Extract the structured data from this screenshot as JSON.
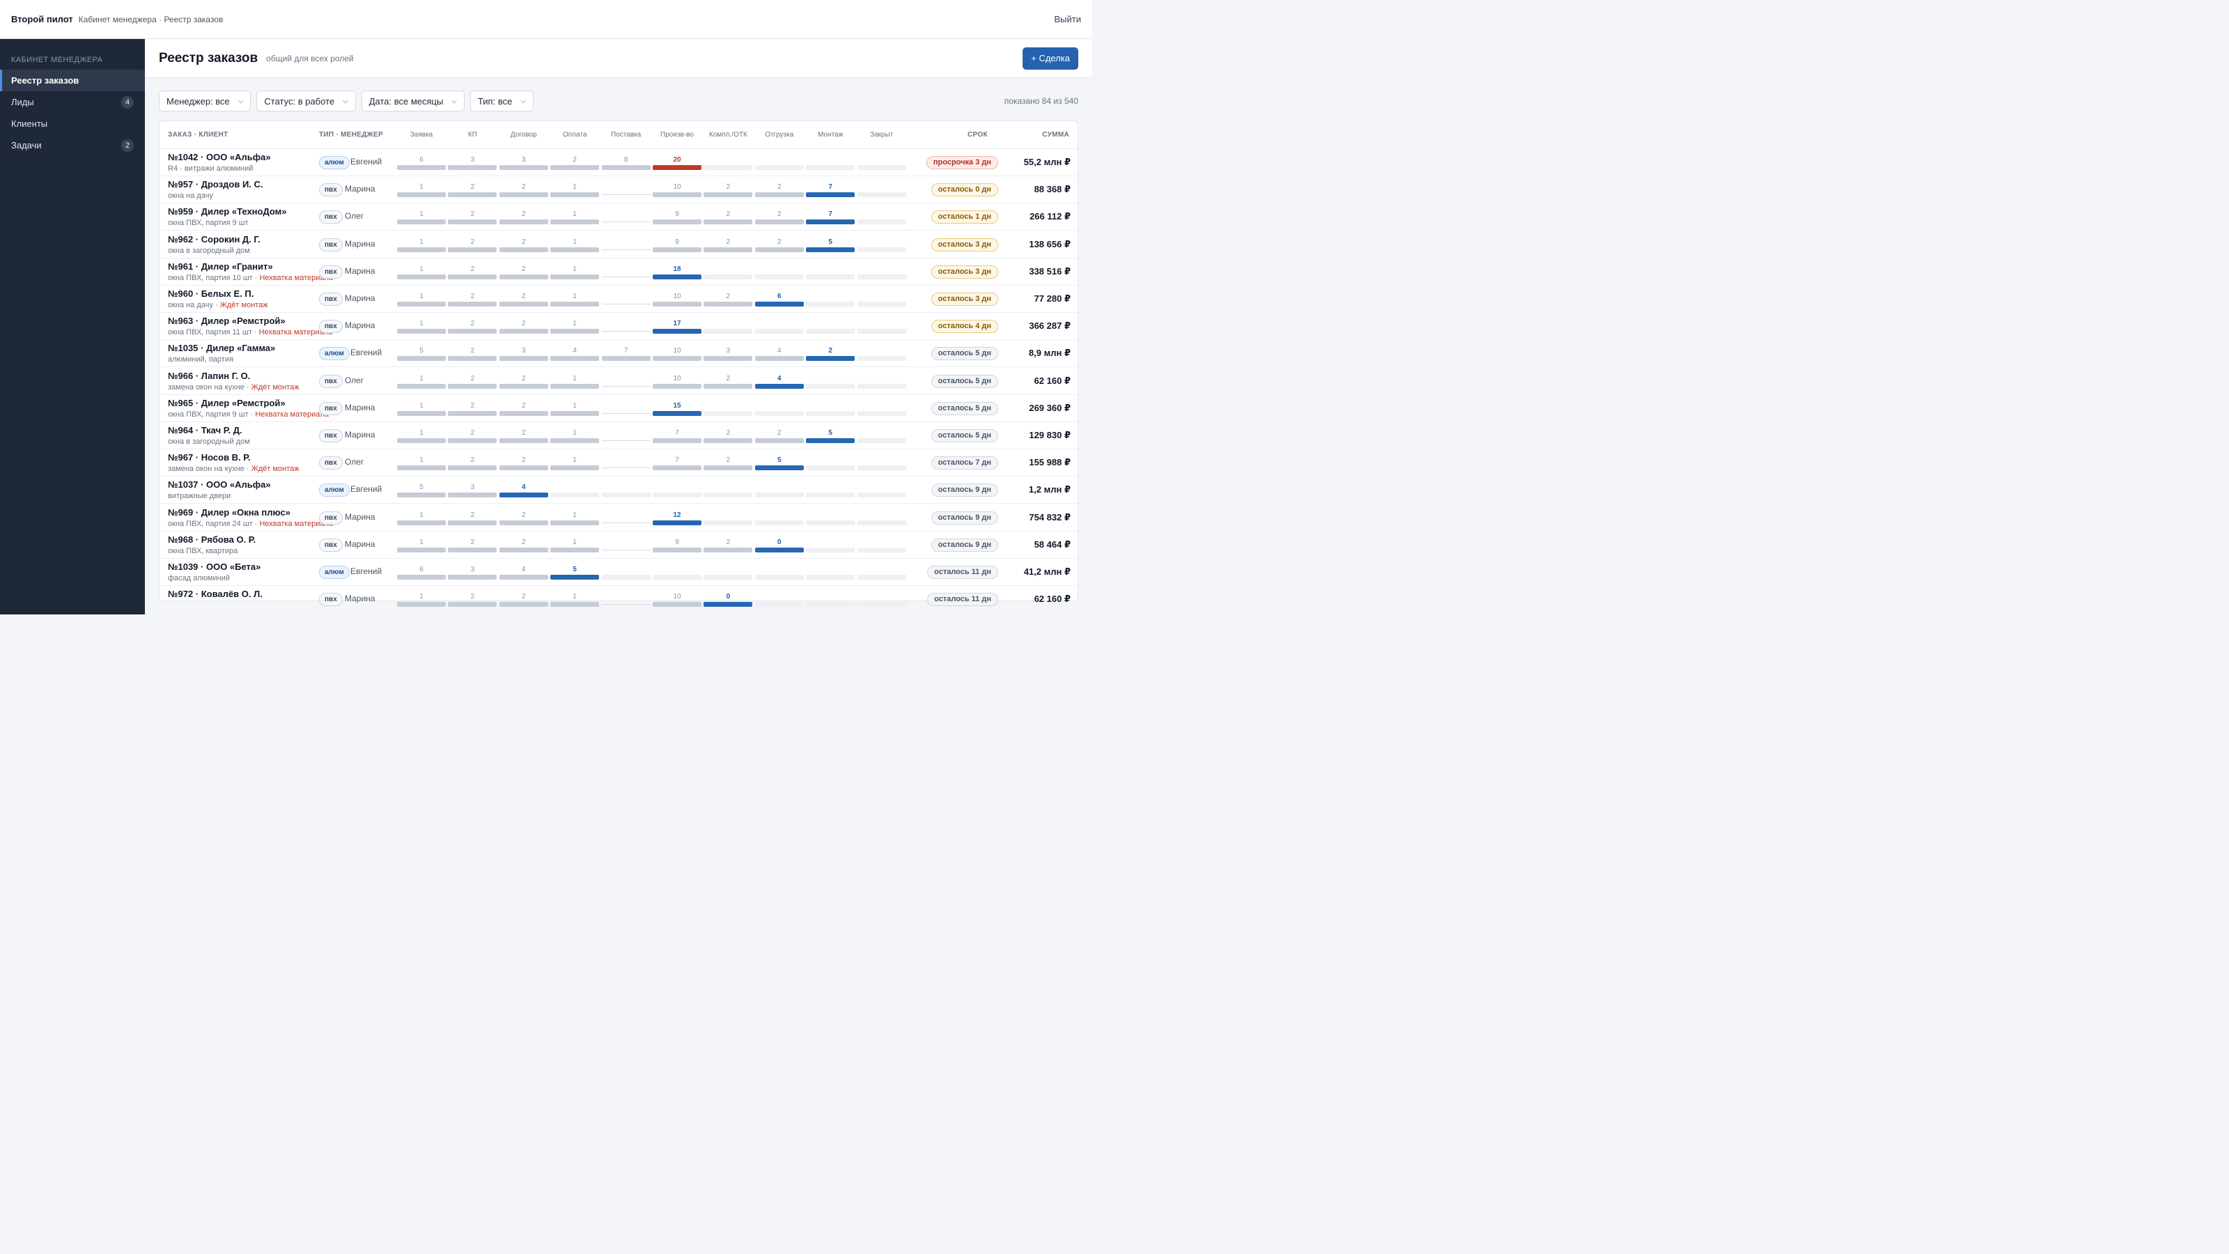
{
  "topbar": {
    "brand": "Второй пилот",
    "breadcrumb": "Кабинет менеджера · Реестр заказов",
    "logout": "Выйти"
  },
  "sidebar": {
    "section": "КАБИНЕТ МЕНЕДЖЕРА",
    "items": [
      {
        "label": "Реестр заказов",
        "badge": "",
        "active": true
      },
      {
        "label": "Лиды",
        "badge": "4",
        "active": false
      },
      {
        "label": "Клиенты",
        "badge": "",
        "active": false
      },
      {
        "label": "Задачи",
        "badge": "2",
        "active": false
      }
    ]
  },
  "header": {
    "title": "Реестр заказов",
    "subtitle": "общий для всех ролей",
    "new_deal": "+ Сделка"
  },
  "filters": [
    {
      "label": "Менеджер: все"
    },
    {
      "label": "Статус: в работе"
    },
    {
      "label": "Дата: все месяцы"
    },
    {
      "label": "Тип: все"
    }
  ],
  "shown_count": "показано 84 из 540",
  "columns": {
    "order": "ЗАКАЗ · КЛИЕНТ",
    "type": "ТИП · МЕНЕДЖЕР",
    "stages": [
      "Заявка",
      "КП",
      "Договор",
      "Оплата",
      "Поставка",
      "Произв-во",
      "Компл./ОТК",
      "Отгрузка",
      "Монтаж",
      "Закрыт"
    ],
    "deadline": "СРОК",
    "sum": "СУММА"
  },
  "rows": [
    {
      "title": "№1042 · ООО «Альфа»",
      "sub": "R4 · витражи алюминий",
      "warn": "",
      "type": "алюм",
      "manager": "Евгений",
      "stages": [
        "6",
        "3",
        "3",
        "2",
        "8",
        "20",
        "",
        "",
        "",
        ""
      ],
      "current": 5,
      "over": true,
      "deadline": "просрочка 3 дн",
      "dl": "over",
      "sum": "55,2 млн ₽"
    },
    {
      "title": "№957 · Дроздов И. С.",
      "sub": "окна на дачу",
      "warn": "",
      "type": "пвх",
      "manager": "Марина",
      "stages": [
        "1",
        "2",
        "2",
        "1",
        "",
        "10",
        "2",
        "2",
        "7",
        ""
      ],
      "current": 8,
      "over": false,
      "deadline": "осталось 0 дн",
      "dl": "warn",
      "sum": "88 368 ₽"
    },
    {
      "title": "№959 · Дилер «ТехноДом»",
      "sub": "окна ПВХ, партия 9 шт",
      "warn": "",
      "type": "пвх",
      "manager": "Олег",
      "stages": [
        "1",
        "2",
        "2",
        "1",
        "",
        "9",
        "2",
        "2",
        "7",
        ""
      ],
      "current": 8,
      "over": false,
      "deadline": "осталось 1 дн",
      "dl": "warn",
      "sum": "266 112 ₽"
    },
    {
      "title": "№962 · Сорокин Д. Г.",
      "sub": "окна в загородный дом",
      "warn": "",
      "type": "пвх",
      "manager": "Марина",
      "stages": [
        "1",
        "2",
        "2",
        "1",
        "",
        "9",
        "2",
        "2",
        "5",
        ""
      ],
      "current": 8,
      "over": false,
      "deadline": "осталось 3 дн",
      "dl": "warn",
      "sum": "138 656 ₽"
    },
    {
      "title": "№961 · Дилер «Гранит»",
      "sub": "окна ПВХ, партия 10 шт",
      "warn": "Нехватка материала",
      "type": "пвх",
      "manager": "Марина",
      "stages": [
        "1",
        "2",
        "2",
        "1",
        "",
        "18",
        "",
        "",
        "",
        ""
      ],
      "current": 5,
      "over": false,
      "deadline": "осталось 3 дн",
      "dl": "warn",
      "sum": "338 516 ₽"
    },
    {
      "title": "№960 · Белых Е. П.",
      "sub": "окна на дачу",
      "warn": "Ждёт монтаж",
      "type": "пвх",
      "manager": "Марина",
      "stages": [
        "1",
        "2",
        "2",
        "1",
        "",
        "10",
        "2",
        "6",
        "",
        ""
      ],
      "current": 7,
      "over": false,
      "deadline": "осталось 3 дн",
      "dl": "warn",
      "sum": "77 280 ₽"
    },
    {
      "title": "№963 · Дилер «Ремстрой»",
      "sub": "окна ПВХ, партия 11 шт",
      "warn": "Нехватка материала",
      "type": "пвх",
      "manager": "Марина",
      "stages": [
        "1",
        "2",
        "2",
        "1",
        "",
        "17",
        "",
        "",
        "",
        ""
      ],
      "current": 5,
      "over": false,
      "deadline": "осталось 4 дн",
      "dl": "warn",
      "sum": "366 287 ₽"
    },
    {
      "title": "№1035 · Дилер «Гамма»",
      "sub": "алюминий, партия",
      "warn": "",
      "type": "алюм",
      "manager": "Евгений",
      "stages": [
        "5",
        "2",
        "3",
        "4",
        "7",
        "10",
        "3",
        "4",
        "2",
        ""
      ],
      "current": 8,
      "over": false,
      "deadline": "осталось 5 дн",
      "dl": "ok",
      "sum": "8,9 млн ₽"
    },
    {
      "title": "№966 · Лапин Г. О.",
      "sub": "замена окон на кухне",
      "warn": "Ждёт монтаж",
      "type": "пвх",
      "manager": "Олег",
      "stages": [
        "1",
        "2",
        "2",
        "1",
        "",
        "10",
        "2",
        "4",
        "",
        ""
      ],
      "current": 7,
      "over": false,
      "deadline": "осталось 5 дн",
      "dl": "ok",
      "sum": "62 160 ₽"
    },
    {
      "title": "№965 · Дилер «Ремстрой»",
      "sub": "окна ПВХ, партия 9 шт",
      "warn": "Нехватка материала",
      "type": "пвх",
      "manager": "Марина",
      "stages": [
        "1",
        "2",
        "2",
        "1",
        "",
        "15",
        "",
        "",
        "",
        ""
      ],
      "current": 5,
      "over": false,
      "deadline": "осталось 5 дн",
      "dl": "ok",
      "sum": "269 360 ₽"
    },
    {
      "title": "№964 · Ткач Р. Д.",
      "sub": "окна в загородный дом",
      "warn": "",
      "type": "пвх",
      "manager": "Марина",
      "stages": [
        "1",
        "2",
        "2",
        "1",
        "",
        "7",
        "2",
        "2",
        "5",
        ""
      ],
      "current": 8,
      "over": false,
      "deadline": "осталось 5 дн",
      "dl": "ok",
      "sum": "129 830 ₽"
    },
    {
      "title": "№967 · Носов В. Р.",
      "sub": "замена окон на кухне",
      "warn": "Ждёт монтаж",
      "type": "пвх",
      "manager": "Олег",
      "stages": [
        "1",
        "2",
        "2",
        "1",
        "",
        "7",
        "2",
        "5",
        "",
        ""
      ],
      "current": 7,
      "over": false,
      "deadline": "осталось 7 дн",
      "dl": "ok",
      "sum": "155 988 ₽"
    },
    {
      "title": "№1037 · ООО «Альфа»",
      "sub": "витражные двери",
      "warn": "",
      "type": "алюм",
      "manager": "Евгений",
      "stages": [
        "5",
        "3",
        "4",
        "",
        "",
        "",
        "",
        "",
        "",
        ""
      ],
      "current": 2,
      "over": false,
      "deadline": "осталось 9 дн",
      "dl": "ok",
      "sum": "1,2 млн ₽"
    },
    {
      "title": "№969 · Дилер «Окна плюс»",
      "sub": "окна ПВХ, партия 24 шт",
      "warn": "Нехватка материала",
      "type": "пвх",
      "manager": "Марина",
      "stages": [
        "1",
        "2",
        "2",
        "1",
        "",
        "12",
        "",
        "",
        "",
        ""
      ],
      "current": 5,
      "over": false,
      "deadline": "осталось 9 дн",
      "dl": "ok",
      "sum": "754 832 ₽"
    },
    {
      "title": "№968 · Рябова О. Р.",
      "sub": "окна ПВХ, квартира",
      "warn": "",
      "type": "пвх",
      "manager": "Марина",
      "stages": [
        "1",
        "2",
        "2",
        "1",
        "",
        "9",
        "2",
        "0",
        "",
        ""
      ],
      "current": 7,
      "over": false,
      "deadline": "осталось 9 дн",
      "dl": "ok",
      "sum": "58 464 ₽"
    },
    {
      "title": "№1039 · ООО «Бета»",
      "sub": "фасад алюминий",
      "warn": "",
      "type": "алюм",
      "manager": "Евгений",
      "stages": [
        "6",
        "3",
        "4",
        "5",
        "",
        "",
        "",
        "",
        "",
        ""
      ],
      "current": 3,
      "over": false,
      "deadline": "осталось 11 дн",
      "dl": "ok",
      "sum": "41,2 млн ₽"
    },
    {
      "title": "№972 · Ковалёв О. Л.",
      "sub": "",
      "warn": "",
      "type": "пвх",
      "manager": "Марина",
      "stages": [
        "1",
        "2",
        "2",
        "1",
        "",
        "10",
        "0",
        "",
        "",
        ""
      ],
      "current": 6,
      "over": false,
      "deadline": "осталось 11 дн",
      "dl": "ok",
      "sum": "62 160 ₽"
    }
  ]
}
